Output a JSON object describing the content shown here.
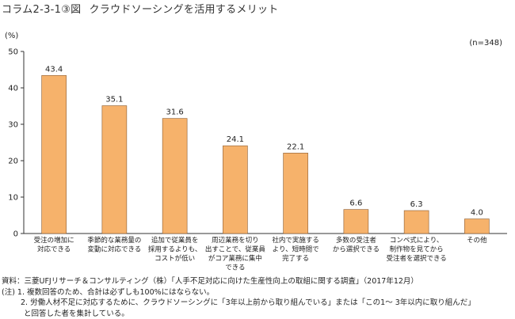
{
  "header": {
    "figure_code": "コラム2-3-1③図",
    "title": "クラウドソーシングを活用するメリット"
  },
  "chart_data": {
    "type": "bar",
    "ylabel": "(%)",
    "ylim": [
      0,
      50
    ],
    "yticks": [
      "0",
      "10",
      "20",
      "30",
      "40",
      "50"
    ],
    "sample_note": "(n=348)",
    "bar_color": "#f6b26b",
    "bar_stroke": "#8a5a2e",
    "grid": false,
    "categories": [
      [
        "受注の増加に",
        "対応できる"
      ],
      [
        "季節的な業務量の",
        "変動に対応できる"
      ],
      [
        "追加で従業員を",
        "採用するよりも、",
        "コストが低い"
      ],
      [
        "周辺業務を切り",
        "出すことで、従業員",
        "がコア業務に集中",
        "できる"
      ],
      [
        "社内で実施する",
        "より、短時間で",
        "完了する"
      ],
      [
        "多数の受注者",
        "から選択できる"
      ],
      [
        "コンペ式により、",
        "制作物を見てから",
        "受注者を選択できる"
      ],
      [
        "その他"
      ]
    ],
    "values": [
      43.4,
      35.1,
      31.6,
      24.1,
      22.1,
      6.6,
      6.3,
      4.0
    ],
    "value_labels": [
      "43.4",
      "35.1",
      "31.6",
      "24.1",
      "22.1",
      "6.6",
      "6.3",
      "4.0"
    ]
  },
  "footnotes": {
    "source": "資料：三菱UFJリサーチ＆コンサルティング（株）「人手不足対応に向けた生産性向上の取組に関する調査」（2017年12月）",
    "note1": "(注) 1. 複数回答のため、合計は必ずしも100%にはならない。",
    "note2": "2. 労働人材不足に対応するために、クラウドソーシングに「3年以上前から取り組んでいる」または「この1～ 3年以内に取り組んだ」",
    "note3": "と回答した者を集計している。"
  }
}
